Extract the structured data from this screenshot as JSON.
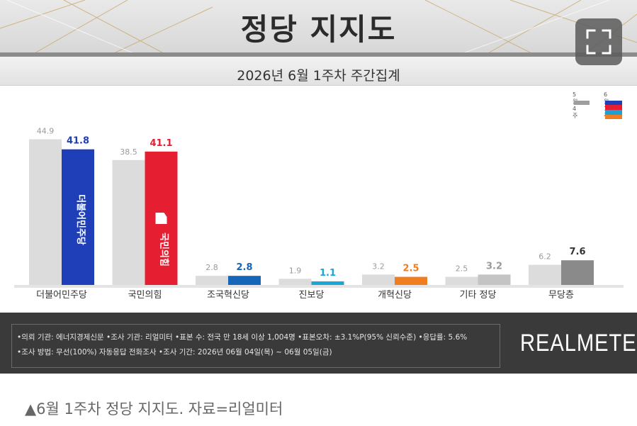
{
  "header": {
    "title": "정당 지지도",
    "subtitle": "2026년 6월 1주차 주간집계"
  },
  "icons": {
    "expand": "expand-icon"
  },
  "legend": [
    {
      "label": "5월 4주",
      "color": "#9e9e9e"
    },
    {
      "label": "6월 1주",
      "colors": [
        "#1f3fb8",
        "#e51e32",
        "#20a0d0",
        "#f07d20"
      ]
    }
  ],
  "chart_data": {
    "type": "bar",
    "categories": [
      "더불어민주당",
      "국민의힘",
      "조국혁신당",
      "진보당",
      "개혁신당",
      "기타 정당",
      "무당층"
    ],
    "series": [
      {
        "name": "5월 4주",
        "values": [
          44.9,
          38.5,
          2.8,
          1.9,
          3.2,
          2.5,
          6.2
        ]
      },
      {
        "name": "6월 1주",
        "values": [
          41.8,
          41.1,
          2.8,
          1.1,
          2.5,
          3.2,
          7.6
        ]
      }
    ],
    "prev_labels": [
      "44.9",
      "38.5",
      "2.8",
      "1.9",
      "3.2",
      "2.5",
      "6.2"
    ],
    "curr_labels": [
      "41.8",
      "41.1",
      "2.8",
      "1.1",
      "2.5",
      "3.2",
      "7.6"
    ],
    "curr_colors": [
      "#1f3fb8",
      "#e51e32",
      "#1565b8",
      "#1ba6d4",
      "#f07d20",
      "#c4c4c4",
      "#8a8a8a"
    ],
    "curr_label_colors": [
      "#1f3fb8",
      "#e51e32",
      "#1565b8",
      "#1ba6d4",
      "#f07d20",
      "#9a9a9a",
      "#333333"
    ],
    "party_logos": [
      "더불어민주당",
      "국민의힘"
    ],
    "ylim": [
      0,
      50
    ],
    "grid": false
  },
  "footer": {
    "line1": "•의뢰 기관: 에너지경제신문  •조사 기관: 리얼미터  •표본 수: 전국 만 18세 이상 1,004명  •표본오차: ±3.1%P(95% 신뢰수준)  •응답률: 5.6%",
    "line2": "•조사 방법: 무선(100%) 자동응답 전화조사  •조사 기간: 2026년 06월 04일(목) ~ 06월 05일(금)",
    "logo": "REALMETER"
  },
  "caption": "▲6월 1주차 정당 지지도. 자료=리얼미터"
}
